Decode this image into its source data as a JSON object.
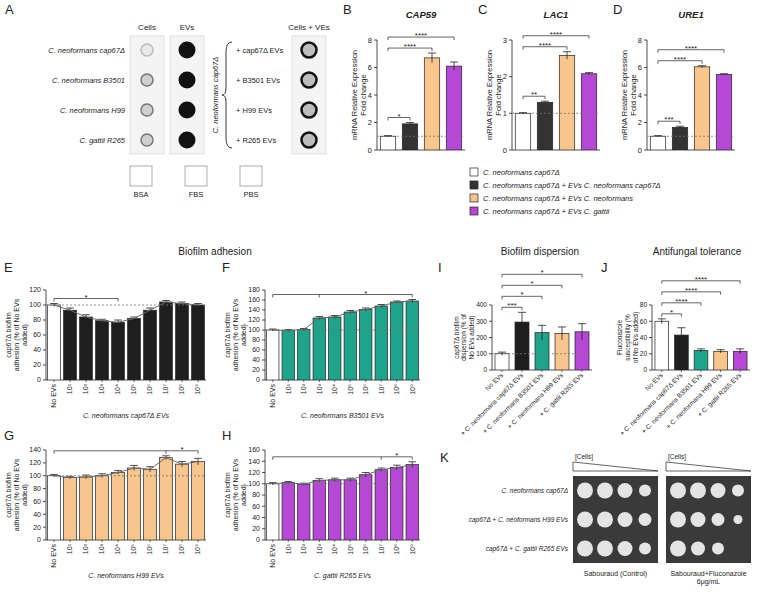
{
  "sections": [
    "Biofilm adhesion",
    "Biofilm dispersion",
    "Antifungal tolerance"
  ],
  "panel_a": {
    "panel": "A",
    "columns": [
      "Cells",
      "EVs"
    ],
    "rows": [
      "C. neoformans cap67Δ",
      "C. neoformans B3501",
      "C. neoformans H99",
      "C. gattii R265"
    ],
    "group_label": "C. neoformans cap67Δ",
    "treatments": [
      "+ cap67Δ EVs",
      "+ B3501 EVs",
      "+ H99 EVs",
      "+ R265 EVs"
    ],
    "treatment_column": "Cells + VEs",
    "controls": [
      "BSA",
      "FBS",
      "PBS"
    ]
  },
  "legend_items": [
    {
      "name": "C. neoformans cap67Δ",
      "color": "#ffffff"
    },
    {
      "name": "C. neoformans cap67Δ + EVs C. neoformans cap67Δ",
      "color": "#333333"
    },
    {
      "name": "C. neoformans cap67Δ + EVs C. neoformans",
      "color": "#f8c58c"
    },
    {
      "name": "C. neoformans cap67Δ + EVs C. gattii",
      "color": "#b548d4"
    }
  ],
  "chart_data": [
    {
      "panel": "B",
      "type": "bar",
      "title": "CAP59",
      "y_label": "mRNA Relative Expression Fold change",
      "categories": [
        null,
        null,
        null,
        null
      ],
      "values": [
        1,
        1.9,
        6.7,
        6.1
      ],
      "errors": [
        0.05,
        0.1,
        0.35,
        0.3
      ],
      "colors": [
        "#ffffff",
        "#333333",
        "#f8c58c",
        "#b548d4"
      ],
      "ylim": [
        0,
        8
      ],
      "yticks": [
        0,
        2,
        4,
        6,
        8
      ],
      "tick_labels": "y",
      "reference_line": 1,
      "annotations": [
        {
          "text": "*",
          "from": 0,
          "to": 1
        },
        {
          "text": "****",
          "from": 0,
          "to": 2
        },
        {
          "text": "****",
          "from": 0,
          "to": 3
        }
      ]
    },
    {
      "panel": "C",
      "type": "bar",
      "title": "LAC1",
      "y_label": "mRNA Relative Expression Fold change",
      "categories": [
        null,
        null,
        null,
        null
      ],
      "values": [
        1,
        1.3,
        2.58,
        2.08
      ],
      "errors": [
        0.02,
        0.03,
        0.1,
        0.03
      ],
      "colors": [
        "#ffffff",
        "#333333",
        "#f8c58c",
        "#b548d4"
      ],
      "ylim": [
        0,
        3
      ],
      "yticks": [
        0,
        1,
        2,
        3
      ],
      "tick_labels": "y",
      "reference_line": 1,
      "annotations": [
        {
          "text": "**",
          "from": 0,
          "to": 1
        },
        {
          "text": "****",
          "from": 0,
          "to": 2
        },
        {
          "text": "****",
          "from": 0,
          "to": 3
        }
      ]
    },
    {
      "panel": "D",
      "type": "bar",
      "title": "URE1",
      "y_label": "mRNA Relative Expression Fold change",
      "categories": [
        null,
        null,
        null,
        null
      ],
      "values": [
        1,
        1.65,
        6.05,
        5.5
      ],
      "errors": [
        0.05,
        0.08,
        0.08,
        0.05
      ],
      "colors": [
        "#ffffff",
        "#333333",
        "#f8c58c",
        "#b548d4"
      ],
      "ylim": [
        0,
        8
      ],
      "yticks": [
        0,
        2,
        4,
        6,
        8
      ],
      "tick_labels": "y",
      "reference_line": 1,
      "annotations": [
        {
          "text": "***",
          "from": 0,
          "to": 1
        },
        {
          "text": "****",
          "from": 0,
          "to": 2
        },
        {
          "text": "****",
          "from": 0,
          "to": 3
        }
      ]
    },
    {
      "panel": "E",
      "type": "bar",
      "y_label": "cap67Δ biofilm adhesion (% of No EVs added)",
      "x_label": "C. neoformans cap67Δ EVs",
      "categories": [
        "No EVs",
        "10¹",
        "10²",
        "10³",
        "10⁴",
        "10⁵",
        "10⁶",
        "10⁷",
        "10⁸",
        "10⁹"
      ],
      "values": [
        100,
        93,
        84,
        79,
        77,
        82,
        93,
        104,
        102,
        100
      ],
      "errors": [
        2,
        3,
        3,
        2,
        3,
        2,
        3,
        2,
        2,
        2
      ],
      "colors": [
        "#ffffff",
        "#1e1e1e",
        "#1e1e1e",
        "#1e1e1e",
        "#1e1e1e",
        "#1e1e1e",
        "#1e1e1e",
        "#1e1e1e",
        "#1e1e1e",
        "#1e1e1e"
      ],
      "ylim": [
        0,
        120
      ],
      "yticks": [
        0,
        20,
        40,
        60,
        80,
        100,
        120
      ],
      "reference_line": 100,
      "line_style": "solid",
      "annotations": [
        {
          "text": "*",
          "from": 0,
          "to": 4
        }
      ]
    },
    {
      "panel": "F",
      "type": "bar",
      "y_label": "cap67Δ biofilm adhesion (% of No EVs added)",
      "x_label": "C. neoformans B3501 EVs",
      "categories": [
        "No EVs",
        "10¹",
        "10²",
        "10³",
        "10⁴",
        "10⁵",
        "10⁶",
        "10⁷",
        "10⁸",
        "10⁹"
      ],
      "values": [
        100,
        99,
        101,
        124,
        126,
        136,
        141,
        148,
        156,
        158
      ],
      "errors": [
        2,
        2,
        2,
        3,
        3,
        3,
        3,
        3,
        2,
        3
      ],
      "colors": [
        "#ffffff",
        "#1fa38a",
        "#1fa38a",
        "#1fa38a",
        "#1fa38a",
        "#1fa38a",
        "#1fa38a",
        "#1fa38a",
        "#1fa38a",
        "#1fa38a"
      ],
      "ylim": [
        0,
        180
      ],
      "yticks": [
        0,
        20,
        40,
        60,
        80,
        100,
        120,
        140,
        160,
        180
      ],
      "reference_line": 100,
      "line_style": "solid",
      "annotations": [
        {
          "text": "*",
          "from": 0,
          "to": [
            3,
            9
          ]
        }
      ]
    },
    {
      "panel": "G",
      "type": "bar",
      "y_label": "cap67Δ biofilm adhesion (% of No EVs added)",
      "x_label": "C. neoformans H99 EVs",
      "categories": [
        "No EVs",
        "10¹",
        "10²",
        "10³",
        "10⁴",
        "10⁵",
        "10⁶",
        "10⁷",
        "10⁸",
        "10⁹"
      ],
      "values": [
        100,
        97,
        98,
        100,
        105,
        112,
        110,
        128,
        118,
        122
      ],
      "errors": [
        2,
        2,
        3,
        3,
        3,
        4,
        4,
        3,
        4,
        5
      ],
      "colors": [
        "#ffffff",
        "#f8c58c",
        "#f8c58c",
        "#f8c58c",
        "#f8c58c",
        "#f8c58c",
        "#f8c58c",
        "#f8c58c",
        "#f8c58c",
        "#f8c58c"
      ],
      "ylim": [
        0,
        140
      ],
      "yticks": [
        0,
        20,
        40,
        60,
        80,
        100,
        120,
        140
      ],
      "reference_line": 100,
      "line_style": "solid",
      "annotations": [
        {
          "text": "*",
          "from": 0,
          "to": [
            7,
            9
          ]
        }
      ]
    },
    {
      "panel": "H",
      "type": "bar",
      "y_label": "cap67Δ biofilm adhesion (% of No EVs added)",
      "x_label": "C. gattii R265 EVs",
      "categories": [
        "No EVs",
        "10¹",
        "10²",
        "10³",
        "10⁴",
        "10⁵",
        "10⁶",
        "10⁷",
        "10⁸",
        "10⁹"
      ],
      "values": [
        100,
        102,
        99,
        106,
        107,
        107,
        116,
        125,
        129,
        134
      ],
      "errors": [
        2,
        2,
        2,
        3,
        3,
        3,
        4,
        3,
        4,
        5
      ],
      "colors": [
        "#ffffff",
        "#b548d4",
        "#b548d4",
        "#b548d4",
        "#b548d4",
        "#b548d4",
        "#b548d4",
        "#b548d4",
        "#b548d4",
        "#b548d4"
      ],
      "ylim": [
        0,
        160
      ],
      "yticks": [
        0,
        20,
        40,
        60,
        80,
        100,
        120,
        140,
        160
      ],
      "reference_line": 100,
      "line_style": "solid",
      "annotations": [
        {
          "text": "*",
          "from": 0,
          "to": [
            7,
            9
          ]
        }
      ]
    },
    {
      "panel": "I",
      "type": "bar",
      "y_label": "cap67Δ biofilm dispersion (% of No EVs added)",
      "categories": [
        "No EVs",
        "+ C. neoformans cap67Δ EVs",
        "+ C. neoformans B3501 EVs",
        "+ C. neoformans H99 EVs",
        "+ C. gattii R265 EVs"
      ],
      "values": [
        100,
        295,
        230,
        225,
        235
      ],
      "errors": [
        10,
        60,
        45,
        40,
        50
      ],
      "colors": [
        "#ffffff",
        "#1e1e1e",
        "#1fa38a",
        "#f8c58c",
        "#b548d4"
      ],
      "ylim": [
        0,
        400
      ],
      "yticks": [
        0,
        100,
        200,
        300,
        400
      ],
      "reference_line": 100,
      "annotations": [
        {
          "text": "***",
          "from": 0,
          "to": 1
        },
        {
          "text": "*",
          "from": 0,
          "to": 2
        },
        {
          "text": "*",
          "from": 0,
          "to": 3
        },
        {
          "text": "*",
          "from": 0,
          "to": 4
        }
      ]
    },
    {
      "panel": "J",
      "type": "bar",
      "y_label": "Fluconazole susceptibility (% of No EVs added)",
      "categories": [
        "No EVs",
        "+ C. neoformans cap67Δ EVs",
        "+ C. neoformans B3501 EVs",
        "+ C. neoformans H99 EVs",
        "+ C. gattii R265 EVs"
      ],
      "values": [
        60,
        43,
        24,
        23,
        23
      ],
      "errors": [
        3,
        9,
        2,
        2,
        3
      ],
      "colors": [
        "#ffffff",
        "#1e1e1e",
        "#1fa38a",
        "#f8c58c",
        "#b548d4"
      ],
      "ylim": [
        0,
        80
      ],
      "yticks": [
        0,
        20,
        40,
        60,
        80
      ],
      "annotations": [
        {
          "text": "*",
          "from": 0,
          "to": 1
        },
        {
          "text": "****",
          "from": 0,
          "to": 2
        },
        {
          "text": "****",
          "from": 0,
          "to": 3
        },
        {
          "text": "****",
          "from": 0,
          "to": 4
        }
      ]
    }
  ],
  "panel_k": {
    "panel": "K",
    "concentration_label": "[Cells]",
    "rows": [
      "C. neoformans cap67Δ",
      "cap67Δ + C. neoformans H99 EVs",
      "cap67Δ + C. gattii R265 EVs"
    ],
    "conditions": [
      "Sabouraud (Control)",
      "Sabouraud+Fluconazole 6μg/mL"
    ]
  }
}
